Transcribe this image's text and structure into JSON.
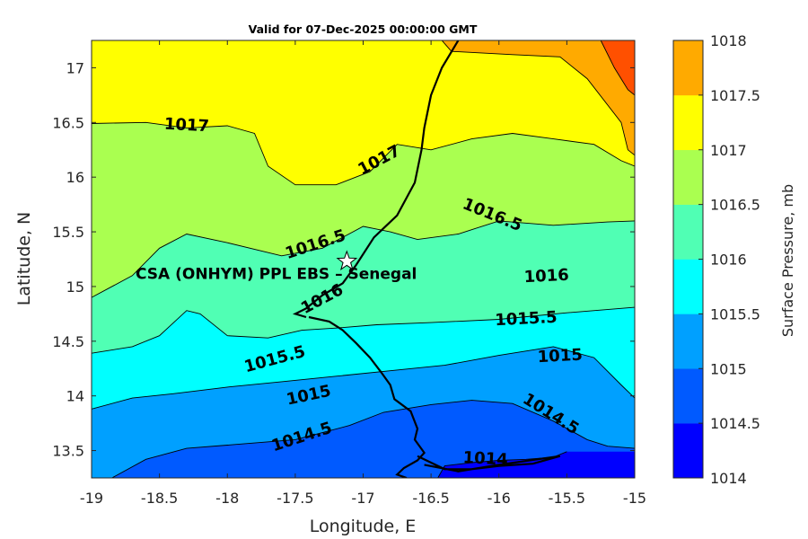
{
  "chart_data": {
    "type": "filled-contour",
    "title": "Valid for 07-Dec-2025 00:00:00 GMT",
    "xlabel": "Longitude, E",
    "ylabel": "Latitude, N",
    "xlim": [
      -19,
      -15
    ],
    "ylim": [
      13.25,
      17.25
    ],
    "xticks": [
      -19,
      -18.5,
      -18,
      -17.5,
      -17,
      -16.5,
      -16,
      -15.5,
      -15
    ],
    "xtick_labels": [
      "-19",
      "-18.5",
      "-18",
      "-17.5",
      "-17",
      "-16.5",
      "-16",
      "-15.5",
      "-15"
    ],
    "yticks": [
      13.5,
      14,
      14.5,
      15,
      15.5,
      16,
      16.5,
      17
    ],
    "ytick_labels": [
      "13.5",
      "14",
      "14.5",
      "15",
      "15.5",
      "16",
      "16.5",
      "17"
    ],
    "levels": [
      1014,
      1014.5,
      1015,
      1015.5,
      1016,
      1016.5,
      1017,
      1017.5,
      1018
    ],
    "level_colors": [
      "#0000ff",
      "#005aff",
      "#00a0ff",
      "#00ffff",
      "#50ffb4",
      "#aaff50",
      "#ffff00",
      "#ffaa00",
      "#ff5000"
    ],
    "colorbar": {
      "label": "Surface Pressure, mb",
      "tick_labels": [
        "1014",
        "1014.5",
        "1015",
        "1015.5",
        "1016",
        "1016.5",
        "1017",
        "1017.5",
        "1018"
      ]
    },
    "contours": [
      {
        "level": 1014,
        "points": [
          [
            -16.45,
            13.25
          ],
          [
            -16.4,
            13.36
          ],
          [
            -16.2,
            13.39
          ],
          [
            -16.0,
            13.41
          ],
          [
            -15.8,
            13.42
          ],
          [
            -15.6,
            13.44
          ],
          [
            -15.5,
            13.49
          ]
        ]
      },
      {
        "level": 1014.5,
        "points": [
          [
            -18.85,
            13.25
          ],
          [
            -18.6,
            13.42
          ],
          [
            -18.3,
            13.52
          ],
          [
            -18.0,
            13.55
          ],
          [
            -17.5,
            13.6
          ],
          [
            -17.1,
            13.73
          ],
          [
            -16.85,
            13.85
          ],
          [
            -16.5,
            13.92
          ],
          [
            -16.2,
            13.96
          ],
          [
            -15.9,
            13.93
          ],
          [
            -15.6,
            13.77
          ],
          [
            -15.35,
            13.6
          ],
          [
            -15.2,
            13.54
          ],
          [
            -15.0,
            13.52
          ]
        ]
      },
      {
        "level": 1015,
        "points": [
          [
            -19,
            13.88
          ],
          [
            -18.7,
            13.98
          ],
          [
            -18.4,
            14.02
          ],
          [
            -18.0,
            14.08
          ],
          [
            -17.6,
            14.13
          ],
          [
            -17.2,
            14.18
          ],
          [
            -16.8,
            14.23
          ],
          [
            -16.4,
            14.28
          ],
          [
            -16.0,
            14.37
          ],
          [
            -15.6,
            14.45
          ],
          [
            -15.3,
            14.35
          ],
          [
            -15.1,
            14.1
          ],
          [
            -15.0,
            13.98
          ]
        ]
      },
      {
        "level": 1015.5,
        "points": [
          [
            -19,
            14.39
          ],
          [
            -18.7,
            14.45
          ],
          [
            -18.5,
            14.55
          ],
          [
            -18.3,
            14.78
          ],
          [
            -18.2,
            14.75
          ],
          [
            -18.0,
            14.55
          ],
          [
            -17.7,
            14.53
          ],
          [
            -17.45,
            14.6
          ],
          [
            -17.2,
            14.62
          ],
          [
            -16.9,
            14.65
          ],
          [
            -16.5,
            14.67
          ],
          [
            -16.0,
            14.7
          ],
          [
            -15.5,
            14.76
          ],
          [
            -15.0,
            14.81
          ]
        ]
      },
      {
        "level": 1016,
        "points": [
          [
            -19,
            14.9
          ],
          [
            -18.7,
            15.1
          ],
          [
            -18.5,
            15.35
          ],
          [
            -18.3,
            15.48
          ],
          [
            -18.0,
            15.4
          ],
          [
            -17.6,
            15.28
          ],
          [
            -17.3,
            15.35
          ],
          [
            -17.0,
            15.55
          ],
          [
            -16.8,
            15.5
          ],
          [
            -16.6,
            15.43
          ],
          [
            -16.3,
            15.48
          ],
          [
            -16.0,
            15.6
          ],
          [
            -15.6,
            15.56
          ],
          [
            -15.2,
            15.59
          ],
          [
            -15.0,
            15.6
          ]
        ]
      },
      {
        "level": 1016.5,
        "points": [
          [
            -19,
            16.49
          ],
          [
            -18.6,
            16.5
          ],
          [
            -18.3,
            16.45
          ],
          [
            -18.0,
            16.47
          ],
          [
            -17.8,
            16.4
          ],
          [
            -17.7,
            16.1
          ],
          [
            -17.5,
            15.93
          ],
          [
            -17.2,
            15.93
          ],
          [
            -16.95,
            16.05
          ],
          [
            -16.75,
            16.3
          ],
          [
            -16.5,
            16.25
          ],
          [
            -16.2,
            16.35
          ],
          [
            -15.9,
            16.4
          ],
          [
            -15.6,
            16.35
          ],
          [
            -15.3,
            16.3
          ],
          [
            -15.1,
            16.15
          ],
          [
            -15.0,
            16.1
          ]
        ]
      },
      {
        "level": 1017,
        "points": [
          [
            -16.42,
            17.25
          ],
          [
            -16.35,
            17.15
          ],
          [
            -15.9,
            17.12
          ],
          [
            -15.55,
            17.1
          ],
          [
            -15.35,
            16.9
          ],
          [
            -15.1,
            16.5
          ],
          [
            -15.05,
            16.25
          ],
          [
            -15.0,
            16.2
          ]
        ]
      },
      {
        "level": 1017.5,
        "points": [
          [
            -15.25,
            17.25
          ],
          [
            -15.15,
            17.0
          ],
          [
            -15.05,
            16.8
          ],
          [
            -15.0,
            16.75
          ]
        ]
      }
    ],
    "coastline": [
      [
        -16.3,
        17.25
      ],
      [
        -16.42,
        17.0
      ],
      [
        -16.5,
        16.75
      ],
      [
        -16.55,
        16.45
      ],
      [
        -16.57,
        16.25
      ],
      [
        -16.62,
        15.95
      ],
      [
        -16.75,
        15.65
      ],
      [
        -16.92,
        15.45
      ],
      [
        -17.05,
        15.2
      ],
      [
        -17.15,
        15.03
      ],
      [
        -17.3,
        14.92
      ],
      [
        -17.42,
        14.8
      ],
      [
        -17.5,
        14.75
      ],
      [
        -17.42,
        14.72
      ]
    ],
    "border": [
      [
        -17.4,
        14.72
      ],
      [
        -17.25,
        14.68
      ],
      [
        -17.15,
        14.6
      ],
      [
        -17.05,
        14.48
      ],
      [
        -16.95,
        14.35
      ],
      [
        -16.87,
        14.22
      ],
      [
        -16.8,
        14.1
      ],
      [
        -16.77,
        13.97
      ],
      [
        -16.65,
        13.86
      ],
      [
        -16.6,
        13.7
      ],
      [
        -16.62,
        13.6
      ],
      [
        -16.55,
        13.48
      ],
      [
        -16.6,
        13.41
      ],
      [
        -16.7,
        13.34
      ],
      [
        -16.75,
        13.28
      ],
      [
        -16.68,
        13.25
      ]
    ],
    "river": [
      [
        -16.6,
        13.45
      ],
      [
        -16.4,
        13.33
      ],
      [
        -16.2,
        13.33
      ],
      [
        -16.0,
        13.36
      ],
      [
        -15.75,
        13.38
      ],
      [
        -15.55,
        13.45
      ],
      [
        -16.0,
        13.37
      ],
      [
        -16.3,
        13.31
      ],
      [
        -16.55,
        13.37
      ]
    ],
    "contour_labels": [
      {
        "text": "1017",
        "lon": -18.3,
        "lat": 16.47,
        "angle": 3
      },
      {
        "text": "1017",
        "lon": -16.88,
        "lat": 16.15,
        "angle": -28
      },
      {
        "text": "1016.5",
        "lon": -16.05,
        "lat": 15.65,
        "angle": 22
      },
      {
        "text": "1016.5",
        "lon": -17.35,
        "lat": 15.38,
        "angle": -18
      },
      {
        "text": "1016",
        "lon": -17.3,
        "lat": 14.88,
        "angle": -28
      },
      {
        "text": "1016",
        "lon": -15.65,
        "lat": 15.09,
        "angle": -3
      },
      {
        "text": "1015.5",
        "lon": -15.8,
        "lat": 14.7,
        "angle": -3
      },
      {
        "text": "1015.5",
        "lon": -17.65,
        "lat": 14.33,
        "angle": -15
      },
      {
        "text": "1015",
        "lon": -15.55,
        "lat": 14.36,
        "angle": -3
      },
      {
        "text": "1015",
        "lon": -17.4,
        "lat": 14.0,
        "angle": -12
      },
      {
        "text": "1014.5",
        "lon": -17.45,
        "lat": 13.62,
        "angle": -18
      },
      {
        "text": "1014.5",
        "lon": -15.62,
        "lat": 13.83,
        "angle": 32
      },
      {
        "text": "1014",
        "lon": -16.1,
        "lat": 13.42,
        "angle": 3
      }
    ],
    "annotations": [
      {
        "text": "CSA (ONHYM) PPL EBS  – Senegal",
        "lon": -17.64,
        "lat": 15.11,
        "marker": "star",
        "marker_lon": -17.12,
        "marker_lat": 15.23
      }
    ]
  }
}
